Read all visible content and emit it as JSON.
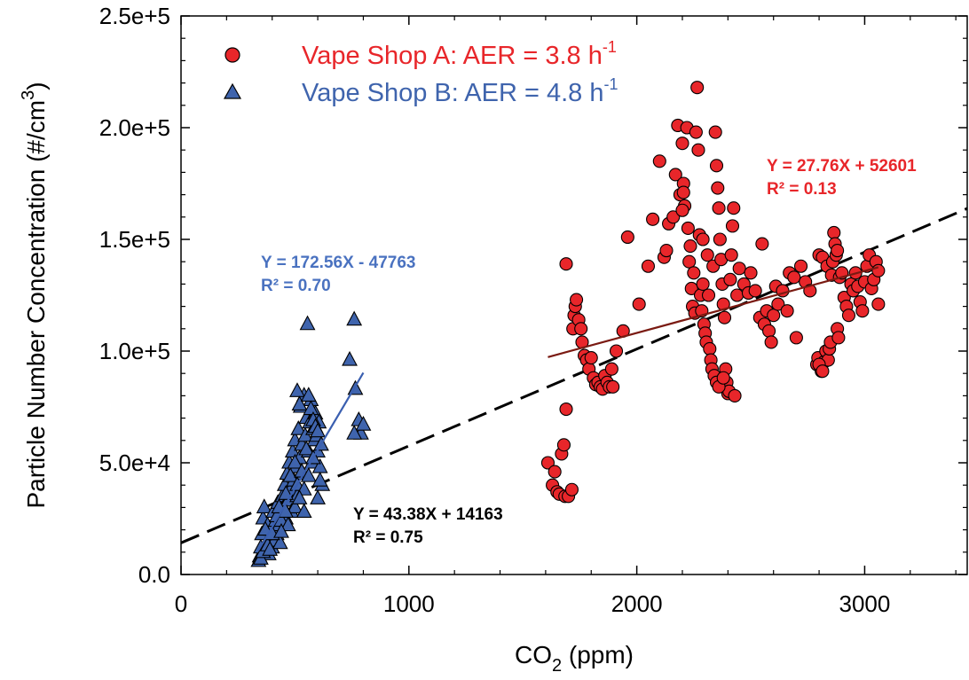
{
  "chart_data": {
    "type": "scatter",
    "xlabel": "CO",
    "xlabel_sub": "2",
    "xlabel_unit": " (ppm)",
    "ylabel": "Particle Number Concentration (#/cm",
    "ylabel_sup": "3",
    "ylabel_close": ")",
    "xlim": [
      0,
      3450
    ],
    "ylim": [
      0,
      250000
    ],
    "x_ticks": [
      0,
      1000,
      2000,
      3000
    ],
    "x_tick_labels": [
      "0",
      "1000",
      "2000",
      "3000"
    ],
    "y_ticks": [
      0,
      50000,
      100000,
      150000,
      200000,
      250000
    ],
    "y_tick_labels": [
      "0.0",
      "5.0e+4",
      "1.0e+5",
      "1.5e+5",
      "2.0e+5",
      "2.5e+5"
    ],
    "grid": false,
    "legend_position": "top-left",
    "series": [
      {
        "name": "Vape Shop A: AER = 3.8 h",
        "name_sup": "-1",
        "marker": "circle",
        "color": "#e8262a",
        "fit_color": "#7a1a12",
        "fit": {
          "slope": 27.76,
          "intercept": 52601,
          "x_range": [
            1610,
            3060
          ]
        },
        "equation": "Y = 27.76X + 52601",
        "r2": "R² = 0.13",
        "points": [
          [
            1610,
            50000
          ],
          [
            1630,
            40000
          ],
          [
            1640,
            46000
          ],
          [
            1650,
            37000
          ],
          [
            1660,
            36000
          ],
          [
            1670,
            54000
          ],
          [
            1680,
            58000
          ],
          [
            1685,
            35000
          ],
          [
            1690,
            74000
          ],
          [
            1700,
            35000
          ],
          [
            1715,
            38000
          ],
          [
            1690,
            139000
          ],
          [
            1720,
            110000
          ],
          [
            1725,
            116000
          ],
          [
            1730,
            120000
          ],
          [
            1735,
            123000
          ],
          [
            1745,
            114000
          ],
          [
            1755,
            110000
          ],
          [
            1760,
            104000
          ],
          [
            1770,
            98000
          ],
          [
            1780,
            96000
          ],
          [
            1790,
            92000
          ],
          [
            1800,
            97000
          ],
          [
            1810,
            88000
          ],
          [
            1820,
            85000
          ],
          [
            1830,
            86000
          ],
          [
            1840,
            84000
          ],
          [
            1850,
            83000
          ],
          [
            1860,
            89000
          ],
          [
            1870,
            86000
          ],
          [
            1880,
            84000
          ],
          [
            1890,
            92000
          ],
          [
            1895,
            84000
          ],
          [
            1910,
            100000
          ],
          [
            1940,
            109000
          ],
          [
            1960,
            151000
          ],
          [
            2010,
            121000
          ],
          [
            2050,
            138000
          ],
          [
            2070,
            159000
          ],
          [
            2100,
            185000
          ],
          [
            2120,
            142000
          ],
          [
            2130,
            145000
          ],
          [
            2140,
            157000
          ],
          [
            2160,
            160000
          ],
          [
            2170,
            179000
          ],
          [
            2180,
            201000
          ],
          [
            2190,
            170000
          ],
          [
            2200,
            193000
          ],
          [
            2205,
            175000
          ],
          [
            2210,
            165000
          ],
          [
            2220,
            200000
          ],
          [
            2225,
            155000
          ],
          [
            2230,
            140000
          ],
          [
            2235,
            147000
          ],
          [
            2240,
            128000
          ],
          [
            2245,
            120000
          ],
          [
            2250,
            135000
          ],
          [
            2255,
            117000
          ],
          [
            2260,
            198000
          ],
          [
            2265,
            218000
          ],
          [
            2270,
            190000
          ],
          [
            2275,
            152000
          ],
          [
            2280,
            125000
          ],
          [
            2285,
            118000
          ],
          [
            2290,
            130000
          ],
          [
            2295,
            112000
          ],
          [
            2300,
            108000
          ],
          [
            2305,
            104000
          ],
          [
            2310,
            143000
          ],
          [
            2315,
            125000
          ],
          [
            2320,
            101000
          ],
          [
            2325,
            96000
          ],
          [
            2330,
            92000
          ],
          [
            2335,
            138000
          ],
          [
            2340,
            89000
          ],
          [
            2345,
            198000
          ],
          [
            2350,
            183000
          ],
          [
            2355,
            173000
          ],
          [
            2360,
            164000
          ],
          [
            2365,
            150000
          ],
          [
            2370,
            141000
          ],
          [
            2375,
            130000
          ],
          [
            2380,
            121000
          ],
          [
            2385,
            115000
          ],
          [
            2390,
            92000
          ],
          [
            2395,
            86000
          ],
          [
            2400,
            81000
          ],
          [
            2405,
            82000
          ],
          [
            2410,
            132000
          ],
          [
            2415,
            143000
          ],
          [
            2420,
            156000
          ],
          [
            2425,
            164000
          ],
          [
            2430,
            80000
          ],
          [
            2440,
            125000
          ],
          [
            2450,
            137000
          ],
          [
            2470,
            130000
          ],
          [
            2490,
            126000
          ],
          [
            2500,
            135000
          ],
          [
            2520,
            127000
          ],
          [
            2540,
            115000
          ],
          [
            2550,
            148000
          ],
          [
            2560,
            112000
          ],
          [
            2570,
            118000
          ],
          [
            2580,
            109000
          ],
          [
            2590,
            104000
          ],
          [
            2600,
            116000
          ],
          [
            2610,
            129000
          ],
          [
            2620,
            121000
          ],
          [
            2640,
            127000
          ],
          [
            2660,
            118000
          ],
          [
            2670,
            135000
          ],
          [
            2690,
            133000
          ],
          [
            2700,
            106000
          ],
          [
            2720,
            138000
          ],
          [
            2740,
            131000
          ],
          [
            2760,
            127000
          ],
          [
            2790,
            94000
          ],
          [
            2795,
            97000
          ],
          [
            2800,
            143000
          ],
          [
            2810,
            91000
          ],
          [
            2815,
            142000
          ],
          [
            2820,
            95000
          ],
          [
            2830,
            100000
          ],
          [
            2835,
            138000
          ],
          [
            2840,
            96000
          ],
          [
            2845,
            101000
          ],
          [
            2850,
            104000
          ],
          [
            2855,
            134000
          ],
          [
            2860,
            140000
          ],
          [
            2865,
            153000
          ],
          [
            2870,
            148000
          ],
          [
            2875,
            143000
          ],
          [
            2880,
            110000
          ],
          [
            2885,
            106000
          ],
          [
            2890,
            133000
          ],
          [
            2900,
            135000
          ],
          [
            2910,
            124000
          ],
          [
            2920,
            120000
          ],
          [
            2930,
            116000
          ],
          [
            2940,
            130000
          ],
          [
            2950,
            127000
          ],
          [
            2960,
            135000
          ],
          [
            2970,
            129000
          ],
          [
            2980,
            122000
          ],
          [
            2990,
            118000
          ],
          [
            3000,
            131000
          ],
          [
            3010,
            138000
          ],
          [
            3020,
            143000
          ],
          [
            3030,
            128000
          ],
          [
            3040,
            132000
          ],
          [
            3050,
            140000
          ],
          [
            3060,
            121000
          ],
          [
            3060,
            136000
          ],
          [
            2800,
            94000
          ],
          [
            2815,
            91000
          ],
          [
            2880,
            145000
          ],
          [
            2350,
            86000
          ],
          [
            2360,
            84000
          ],
          [
            2380,
            88000
          ],
          [
            2200,
            163000
          ],
          [
            2205,
            171000
          ],
          [
            2290,
            150000
          ]
        ]
      },
      {
        "name": "Vape Shop B: AER = 4.8 h",
        "name_sup": "-1",
        "marker": "triangle",
        "color": "#3f64ad",
        "fit_color": "#3a5fb0",
        "fit": {
          "slope": 172.56,
          "intercept": -47763,
          "x_range": [
            340,
            800
          ]
        },
        "equation": "Y = 172.56X - 47763",
        "r2": "R² = 0.70",
        "points": [
          [
            345,
            8000
          ],
          [
            350,
            12000
          ],
          [
            355,
            18000
          ],
          [
            360,
            25000
          ],
          [
            365,
            30000
          ],
          [
            370,
            10000
          ],
          [
            375,
            14000
          ],
          [
            380,
            22000
          ],
          [
            385,
            9000
          ],
          [
            390,
            16000
          ],
          [
            395,
            20000
          ],
          [
            400,
            12000
          ],
          [
            405,
            28000
          ],
          [
            410,
            15000
          ],
          [
            415,
            24000
          ],
          [
            420,
            18000
          ],
          [
            425,
            32000
          ],
          [
            430,
            22000
          ],
          [
            435,
            14000
          ],
          [
            440,
            27000
          ],
          [
            445,
            35000
          ],
          [
            450,
            30000
          ],
          [
            455,
            40000
          ],
          [
            460,
            25000
          ],
          [
            465,
            45000
          ],
          [
            470,
            33000
          ],
          [
            475,
            50000
          ],
          [
            480,
            38000
          ],
          [
            485,
            28000
          ],
          [
            490,
            55000
          ],
          [
            495,
            42000
          ],
          [
            500,
            60000
          ],
          [
            505,
            48000
          ],
          [
            510,
            35000
          ],
          [
            515,
            65000
          ],
          [
            520,
            52000
          ],
          [
            525,
            75000
          ],
          [
            530,
            58000
          ],
          [
            535,
            45000
          ],
          [
            540,
            80000
          ],
          [
            545,
            62000
          ],
          [
            550,
            70000
          ],
          [
            555,
            112000
          ],
          [
            560,
            55000
          ],
          [
            565,
            68000
          ],
          [
            570,
            78000
          ],
          [
            575,
            50000
          ],
          [
            580,
            65000
          ],
          [
            585,
            60000
          ],
          [
            590,
            72000
          ],
          [
            595,
            62000
          ],
          [
            600,
            55000
          ],
          [
            605,
            68000
          ],
          [
            610,
            48000
          ],
          [
            615,
            58000
          ],
          [
            620,
            40000
          ],
          [
            510,
            82000
          ],
          [
            520,
            76000
          ],
          [
            560,
            80000
          ],
          [
            570,
            74000
          ],
          [
            580,
            69000
          ],
          [
            590,
            66000
          ],
          [
            600,
            64000
          ],
          [
            740,
            96000
          ],
          [
            760,
            114000
          ],
          [
            765,
            83000
          ],
          [
            780,
            69000
          ],
          [
            790,
            63000
          ],
          [
            800,
            67000
          ],
          [
            760,
            63000
          ],
          [
            340,
            6000
          ],
          [
            350,
            7000
          ],
          [
            360,
            10000
          ],
          [
            370,
            20000
          ],
          [
            380,
            13000
          ],
          [
            390,
            11000
          ],
          [
            400,
            18000
          ],
          [
            420,
            26000
          ],
          [
            430,
            30000
          ],
          [
            440,
            24000
          ],
          [
            460,
            36000
          ],
          [
            480,
            44000
          ],
          [
            500,
            50000
          ],
          [
            510,
            40000
          ],
          [
            530,
            46000
          ],
          [
            540,
            38000
          ],
          [
            550,
            56000
          ],
          [
            560,
            44000
          ],
          [
            580,
            52000
          ],
          [
            600,
            34000
          ],
          [
            610,
            42000
          ],
          [
            500,
            30000
          ],
          [
            520,
            34000
          ],
          [
            540,
            28000
          ],
          [
            470,
            22000
          ],
          [
            460,
            28000
          ],
          [
            440,
            19000
          ]
        ]
      }
    ],
    "overall_fit": {
      "slope": 43.38,
      "intercept": 14163,
      "color": "#000000",
      "equation": "Y = 43.38X + 14163",
      "r2": "R² = 0.75"
    }
  }
}
